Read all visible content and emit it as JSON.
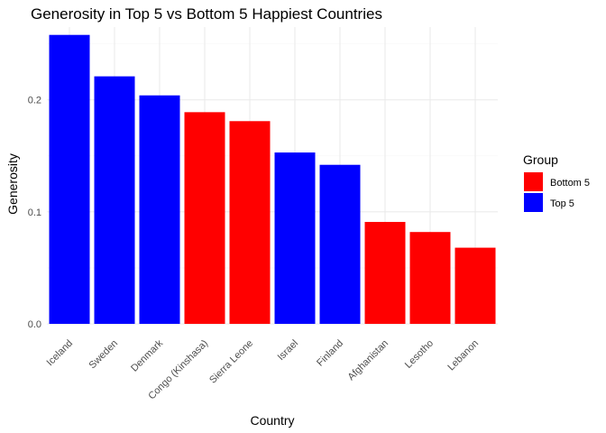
{
  "chart_data": {
    "type": "bar",
    "title": "Generosity in Top 5 vs Bottom 5 Happiest Countries",
    "xlabel": "Country",
    "ylabel": "Generosity",
    "ylim": [
      0,
      0.265
    ],
    "yticks": [
      0.0,
      0.1,
      0.2
    ],
    "ytick_labels": [
      "0.0",
      "0.1",
      "0.2"
    ],
    "grid": true,
    "legend": {
      "title": "Group",
      "position": "right",
      "entries": [
        {
          "label": "Bottom 5",
          "color": "#ff0000"
        },
        {
          "label": "Top 5",
          "color": "#0000ff"
        }
      ]
    },
    "categories": [
      "Iceland",
      "Sweden",
      "Denmark",
      "Congo (Kinshasa)",
      "Sierra Leone",
      "Israel",
      "Finland",
      "Afghanistan",
      "Lesotho",
      "Lebanon"
    ],
    "groups": [
      "Top 5",
      "Top 5",
      "Top 5",
      "Bottom 5",
      "Bottom 5",
      "Top 5",
      "Top 5",
      "Bottom 5",
      "Bottom 5",
      "Bottom 5"
    ],
    "values": [
      0.258,
      0.221,
      0.204,
      0.189,
      0.181,
      0.153,
      0.142,
      0.091,
      0.082,
      0.068
    ],
    "colors": {
      "Top 5": "#0000ff",
      "Bottom 5": "#ff0000"
    }
  }
}
